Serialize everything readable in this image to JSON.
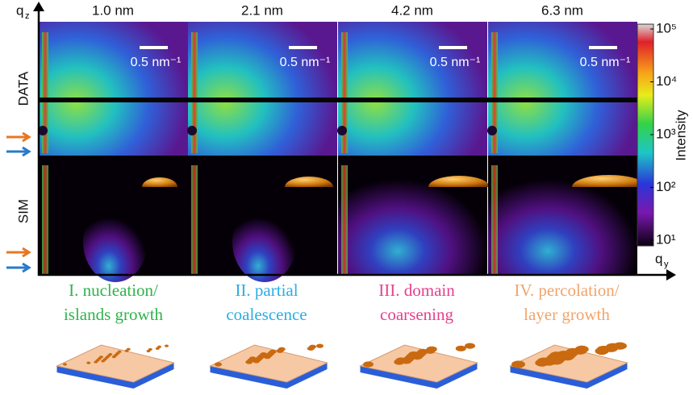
{
  "axes": {
    "vertical": {
      "symbol": "q",
      "subscript": "z"
    },
    "horizontal": {
      "symbol": "q",
      "subscript": "y"
    }
  },
  "rows": [
    "DATA",
    "SIM"
  ],
  "panels": [
    {
      "thickness": "1.0 nm",
      "scale_bar": "0.5 nm⁻¹"
    },
    {
      "thickness": "2.1 nm",
      "scale_bar": "0.5 nm⁻¹"
    },
    {
      "thickness": "4.2 nm",
      "scale_bar": "0.5 nm⁻¹"
    },
    {
      "thickness": "6.3 nm",
      "scale_bar": "0.5 nm⁻¹"
    }
  ],
  "colorbar": {
    "label": "Intensity",
    "log": true,
    "lim": [
      10,
      100000
    ],
    "ticks": [
      {
        "value": 10,
        "label": "10¹"
      },
      {
        "value": 100,
        "label": "10²"
      },
      {
        "value": 1000,
        "label": "10³"
      },
      {
        "value": 10000,
        "label": "10⁴"
      },
      {
        "value": 100000,
        "label": "10⁵"
      }
    ]
  },
  "stages": [
    {
      "lines": [
        "I. nucleation/",
        "islands growth"
      ],
      "color": "#2fb34c"
    },
    {
      "lines": [
        "II. partial",
        "coalescence"
      ],
      "color": "#2aaee2"
    },
    {
      "lines": [
        "III. domain",
        "coarsening"
      ],
      "color": "#e6408e"
    },
    {
      "lines": [
        "IV. percolation/",
        "layer growth"
      ],
      "color": "#f2a46a"
    }
  ]
}
